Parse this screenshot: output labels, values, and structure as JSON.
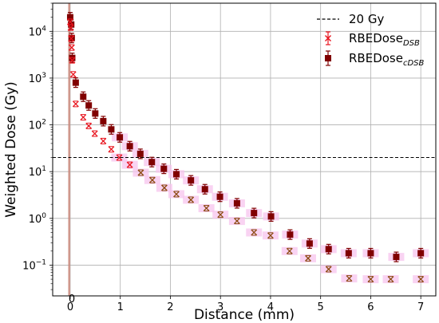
{
  "chart_data": {
    "type": "scatter",
    "xlabel": "Distance (mm)",
    "ylabel": "Weighted Dose (Gy)",
    "xlim": [
      -0.35,
      7.3
    ],
    "ylim": [
      0.022,
      40000
    ],
    "y_scale": "log",
    "x_ticks": [
      0,
      1,
      2,
      3,
      4,
      5,
      6,
      7
    ],
    "x_ticks_minor": [
      0
    ],
    "y_ticks": [
      {
        "value": 0.1,
        "base": "10",
        "exp": "−1"
      },
      {
        "value": 1,
        "base": "10",
        "exp": "0"
      },
      {
        "value": 10,
        "base": "10",
        "exp": "1"
      },
      {
        "value": 100,
        "base": "10",
        "exp": "2"
      },
      {
        "value": 1000,
        "base": "10",
        "exp": "3"
      },
      {
        "value": 10000,
        "base": "10",
        "exp": "4"
      }
    ],
    "grid": true,
    "legend_position": "top-right",
    "reference_line": {
      "label": "20 Gy",
      "y": 20,
      "color": "#000000",
      "style": "dashed"
    },
    "highlight_band": {
      "x_range": [
        -0.04,
        0.0
      ],
      "color": "#c9877a"
    },
    "series": [
      {
        "legend_main": "RBEDose",
        "legend_sub": "DSB",
        "marker": "x",
        "color": "#e8141e",
        "band_color": "#f7c4ee",
        "x": [
          0.0,
          0.01,
          0.02,
          0.03,
          0.04,
          0.06,
          0.11,
          0.26,
          0.37,
          0.49,
          0.66,
          0.82,
          0.98,
          1.19,
          1.41,
          1.64,
          1.88,
          2.12,
          2.41,
          2.72,
          3.0,
          3.33,
          3.67,
          4.0,
          4.38,
          4.75,
          5.16,
          5.57,
          6.0,
          6.4,
          7.0
        ],
        "y": [
          16000,
          12000,
          7000,
          4500,
          2400,
          1200,
          280,
          145,
          95,
          65,
          45,
          30,
          20,
          14,
          9.5,
          6.6,
          4.5,
          3.3,
          2.5,
          1.65,
          1.2,
          0.88,
          0.5,
          0.43,
          0.2,
          0.14,
          0.082,
          0.052,
          0.05,
          0.05,
          0.05
        ]
      },
      {
        "legend_main": "RBEDose",
        "legend_sub": "cDSB",
        "marker": "square",
        "color": "#800000",
        "band_color": "#f7c4ee",
        "x": [
          0.0,
          0.02,
          0.03,
          0.04,
          0.11,
          0.26,
          0.37,
          0.5,
          0.66,
          0.82,
          0.99,
          1.19,
          1.4,
          1.63,
          1.87,
          2.12,
          2.41,
          2.69,
          2.99,
          3.33,
          3.67,
          4.01,
          4.39,
          4.78,
          5.16,
          5.56,
          6.0,
          6.51,
          7.0
        ],
        "y": [
          20000,
          14000,
          7200,
          2700,
          800,
          400,
          260,
          175,
          120,
          80,
          54,
          35,
          24,
          16,
          11.5,
          8.8,
          6.5,
          4.2,
          2.9,
          2.1,
          1.3,
          1.1,
          0.45,
          0.29,
          0.22,
          0.18,
          0.18,
          0.15,
          0.18
        ]
      }
    ]
  }
}
